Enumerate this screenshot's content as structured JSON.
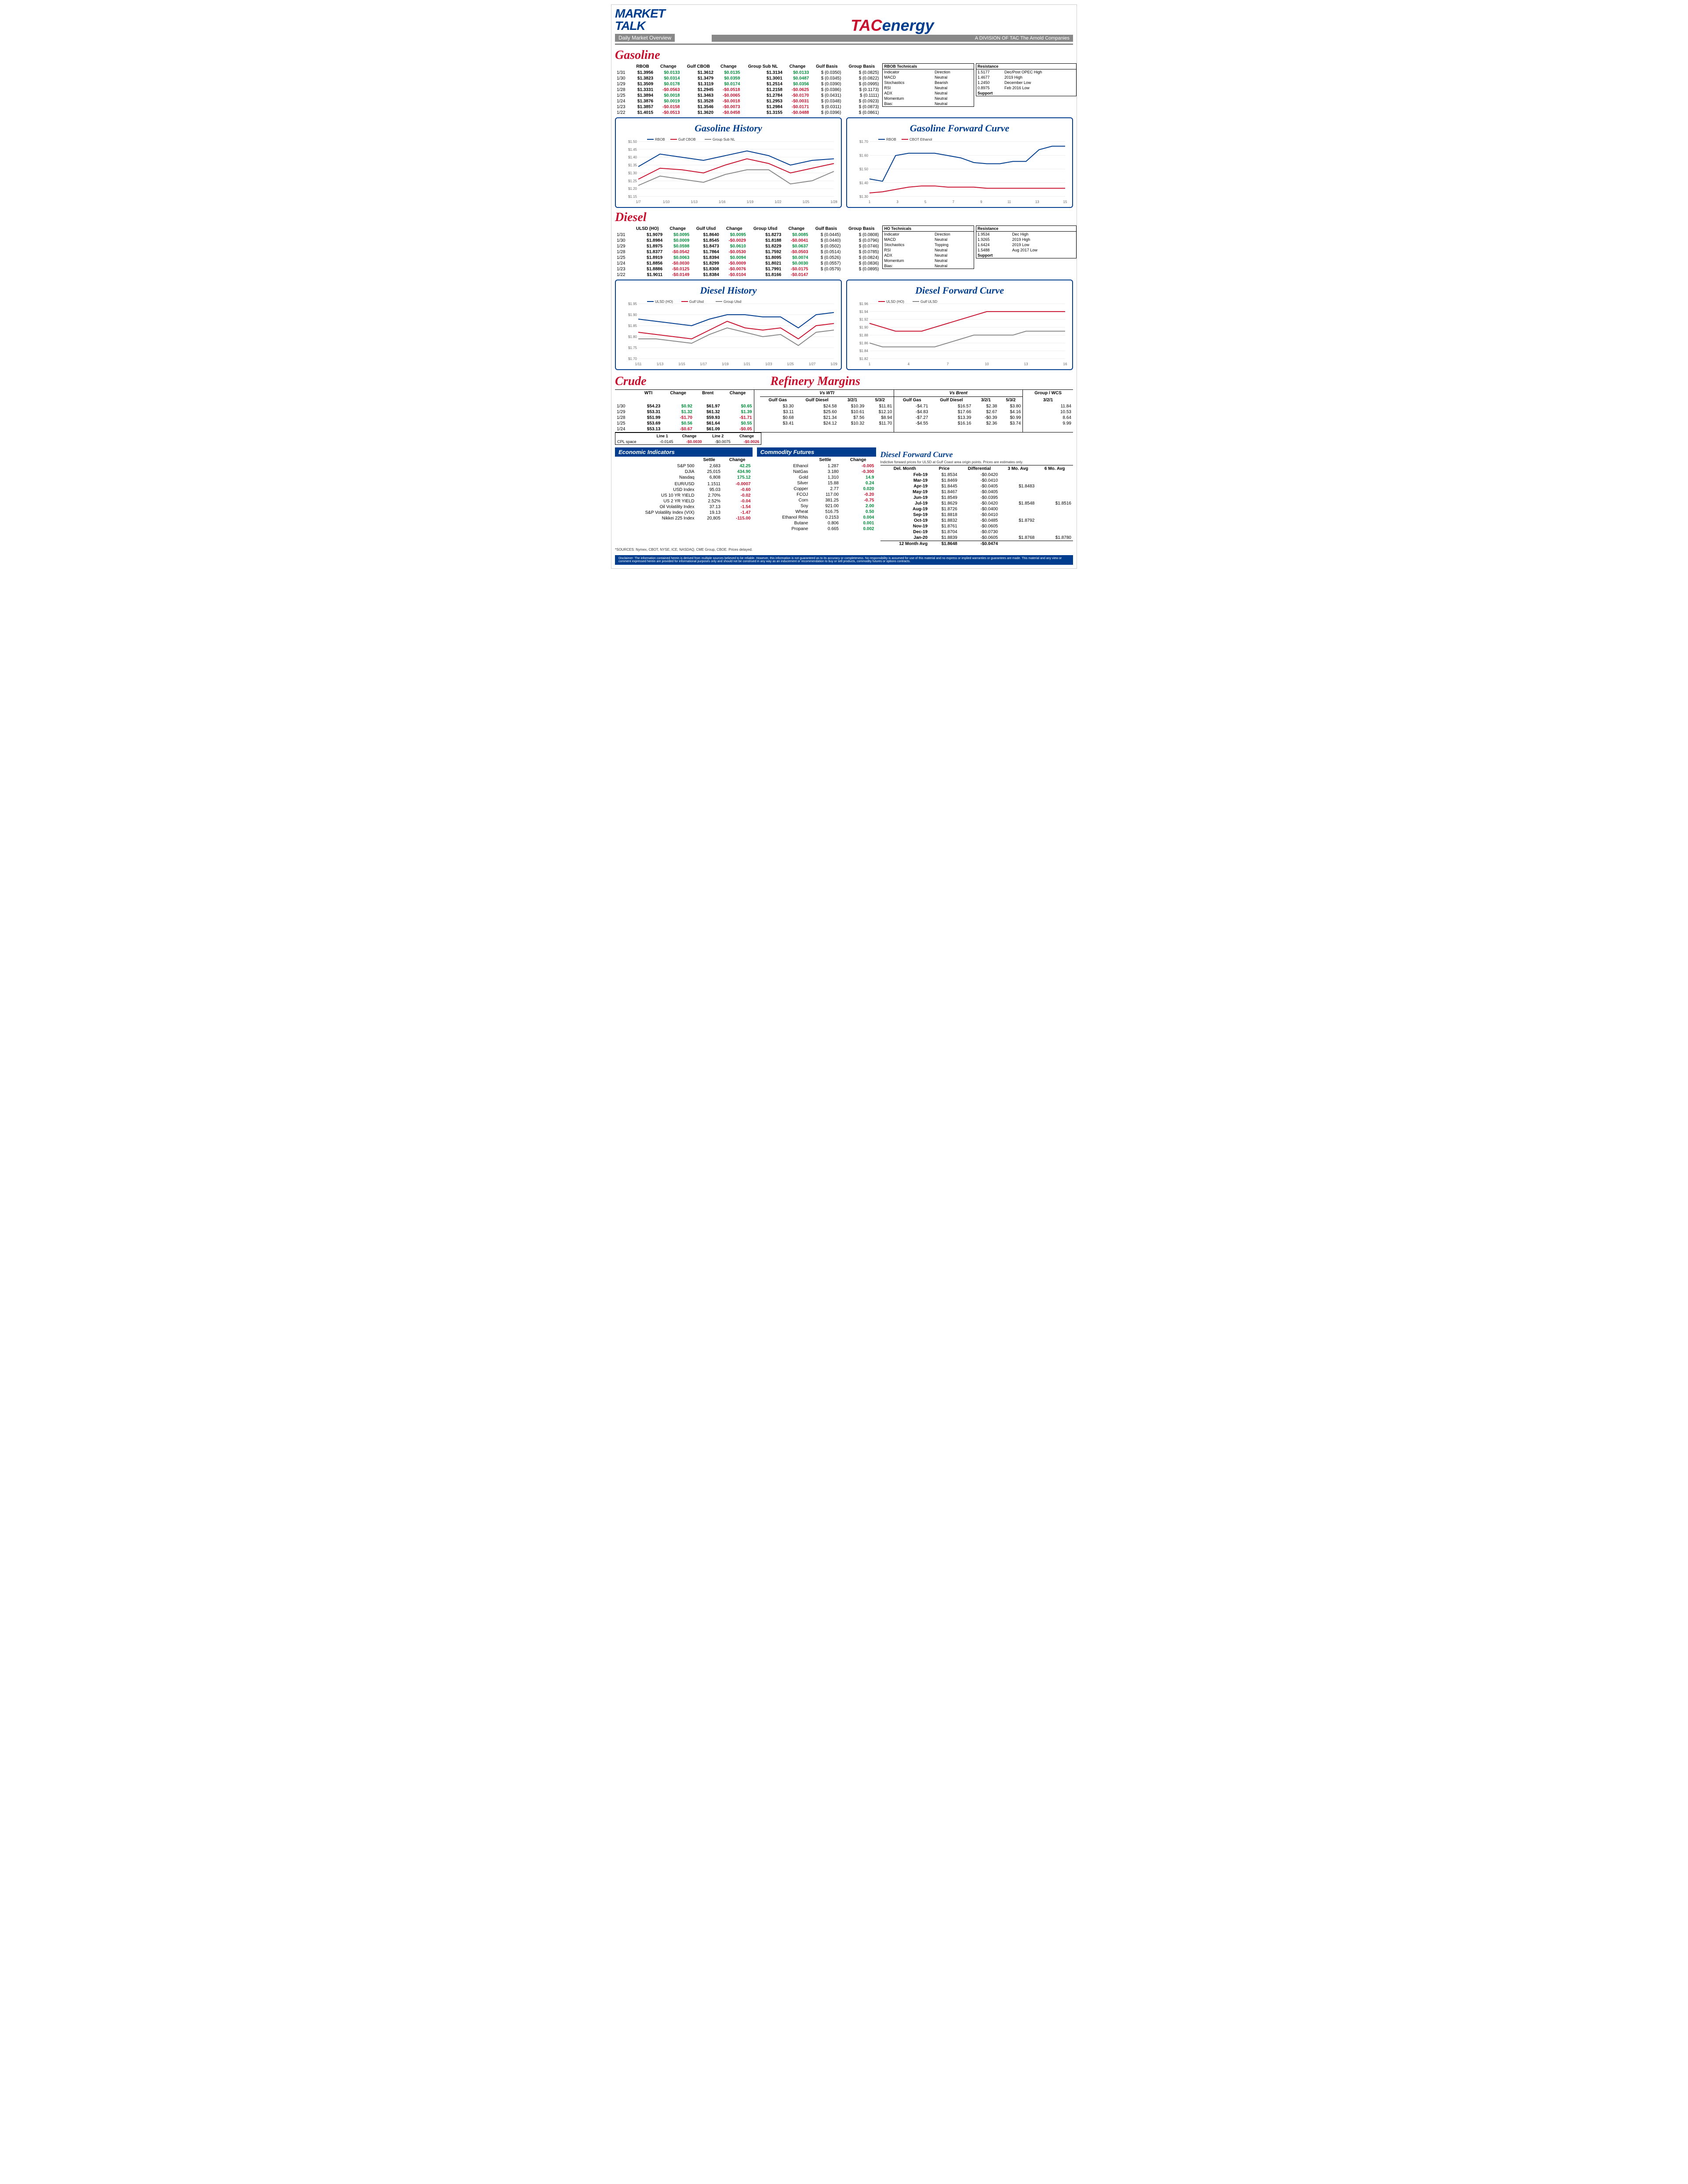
{
  "header": {
    "market": "MARKET",
    "talk": "TALK",
    "subtitle": "Daily Market Overview",
    "tac": "TAC",
    "energy": "energy",
    "division": "A DIVISION OF TAC The Arnold Companies"
  },
  "gasoline": {
    "title": "Gasoline",
    "headers": [
      "",
      "RBOB",
      "Change",
      "Gulf CBOB",
      "Change",
      "Group Sub NL",
      "Change",
      "Gulf Basis",
      "Group Basis"
    ],
    "rows": [
      [
        "1/31",
        "$1.3956",
        "$0.0133",
        "$1.3612",
        "$0.0135",
        "$1.3134",
        "$0.0133",
        "$ (0.0350)",
        "$    (0.0825)"
      ],
      [
        "1/30",
        "$1.3823",
        "$0.0314",
        "$1.3479",
        "$0.0359",
        "$1.3001",
        "$0.0487",
        "$ (0.0345)",
        "$    (0.0822)"
      ],
      [
        "1/29",
        "$1.3509",
        "$0.0178",
        "$1.3119",
        "$0.0174",
        "$1.2514",
        "$0.0356",
        "$ (0.0390)",
        "$    (0.0995)"
      ],
      [
        "1/28",
        "$1.3331",
        "-$0.0563",
        "$1.2945",
        "-$0.0518",
        "$1.2158",
        "-$0.0625",
        "$ (0.0386)",
        "$    (0.1173)"
      ],
      [
        "1/25",
        "$1.3894",
        "$0.0018",
        "$1.3463",
        "-$0.0065",
        "$1.2784",
        "-$0.0170",
        "$ (0.0431)",
        "$    (0.1111)"
      ],
      [
        "1/24",
        "$1.3876",
        "$0.0019",
        "$1.3528",
        "-$0.0018",
        "$1.2953",
        "-$0.0031",
        "$ (0.0348)",
        "$    (0.0923)"
      ],
      [
        "1/23",
        "$1.3857",
        "-$0.0158",
        "$1.3546",
        "-$0.0073",
        "$1.2984",
        "-$0.0171",
        "$ (0.0311)",
        "$    (0.0873)"
      ],
      [
        "1/22",
        "$1.4015",
        "-$0.0513",
        "$1.3620",
        "-$0.0458",
        "$1.3155",
        "-$0.0488",
        "$ (0.0396)",
        "$    (0.0861)"
      ]
    ],
    "changes_sign": [
      [
        1,
        1,
        1
      ],
      [
        1,
        1,
        1
      ],
      [
        1,
        1,
        1
      ],
      [
        -1,
        -1,
        -1
      ],
      [
        1,
        -1,
        -1
      ],
      [
        1,
        -1,
        -1
      ],
      [
        -1,
        -1,
        -1
      ],
      [
        -1,
        -1,
        -1
      ]
    ],
    "tech": {
      "title": "RBOB Technicals",
      "rows": [
        [
          "Indicator",
          "Direction"
        ],
        [
          "MACD",
          "Neutral"
        ],
        [
          "Stochastics",
          "Bearish"
        ],
        [
          "RSI",
          "Neutral"
        ],
        [
          "ADX",
          "Neutral"
        ],
        [
          "Momentum",
          "Neutral"
        ],
        [
          "Bias:",
          "Neutral"
        ]
      ]
    },
    "resist": {
      "title": "Resistance",
      "rows": [
        [
          "1.5177",
          "Dec/Post OPEC High"
        ],
        [
          "1.4677",
          "2019 High"
        ],
        [
          "1.2450",
          "December Low"
        ],
        [
          "0.8975",
          "Feb 2016 Low"
        ]
      ],
      "support": "Support"
    },
    "history": {
      "title": "Gasoline History",
      "x_labels": [
        "1/7",
        "1/10",
        "1/13",
        "1/16",
        "1/19",
        "1/22",
        "1/25",
        "1/28"
      ],
      "y_labels": [
        "$1.15",
        "$1.20",
        "$1.25",
        "$1.30",
        "$1.35",
        "$1.40",
        "$1.45",
        "$1.50"
      ],
      "series": [
        {
          "name": "RBOB",
          "color": "#003d8f",
          "values": [
            1.34,
            1.42,
            1.4,
            1.38,
            1.41,
            1.44,
            1.41,
            1.35,
            1.38,
            1.39
          ]
        },
        {
          "name": "Gulf CBOB",
          "color": "#c8102e",
          "values": [
            1.26,
            1.33,
            1.32,
            1.3,
            1.35,
            1.39,
            1.36,
            1.3,
            1.33,
            1.36
          ]
        },
        {
          "name": "Group Sub NL",
          "color": "#888",
          "values": [
            1.22,
            1.28,
            1.26,
            1.24,
            1.29,
            1.32,
            1.32,
            1.23,
            1.25,
            1.31
          ]
        }
      ],
      "ymin": 1.15,
      "ymax": 1.5
    },
    "forward": {
      "title": "Gasoline Forward Curve",
      "x_labels": [
        "1",
        "3",
        "5",
        "7",
        "9",
        "11",
        "13",
        "15"
      ],
      "y_labels": [
        "$1.30",
        "$1.40",
        "$1.50",
        "$1.60",
        "$1.70"
      ],
      "series": [
        {
          "name": "RBOB",
          "color": "#003d8f",
          "values": [
            1.4,
            1.38,
            1.6,
            1.62,
            1.62,
            1.62,
            1.6,
            1.58,
            1.54,
            1.53,
            1.53,
            1.55,
            1.55,
            1.65,
            1.68,
            1.68
          ]
        },
        {
          "name": "CBOT Ethanol",
          "color": "#c8102e",
          "values": [
            1.28,
            1.29,
            1.31,
            1.33,
            1.34,
            1.34,
            1.33,
            1.33,
            1.33,
            1.32,
            1.32,
            1.32,
            1.32,
            1.32,
            1.32,
            1.32
          ]
        }
      ],
      "ymin": 1.25,
      "ymax": 1.72
    }
  },
  "diesel": {
    "title": "Diesel",
    "headers": [
      "",
      "ULSD (HO)",
      "Change",
      "Gulf Ulsd",
      "Change",
      "Group Ulsd",
      "Change",
      "Gulf Basis",
      "Group Basis"
    ],
    "rows": [
      [
        "1/31",
        "$1.9079",
        "$0.0095",
        "$1.8640",
        "$0.0095",
        "$1.8273",
        "$0.0085",
        "$ (0.0445)",
        "$    (0.0808)"
      ],
      [
        "1/30",
        "$1.8984",
        "$0.0009",
        "$1.8545",
        "-$0.0029",
        "$1.8188",
        "-$0.0041",
        "$ (0.0440)",
        "$    (0.0796)"
      ],
      [
        "1/29",
        "$1.8975",
        "$0.0598",
        "$1.8473",
        "$0.0610",
        "$1.8229",
        "$0.0637",
        "$ (0.0502)",
        "$    (0.0746)"
      ],
      [
        "1/28",
        "$1.8377",
        "-$0.0542",
        "$1.7864",
        "-$0.0530",
        "$1.7592",
        "-$0.0503",
        "$ (0.0514)",
        "$    (0.0785)"
      ],
      [
        "1/25",
        "$1.8919",
        "$0.0063",
        "$1.8394",
        "$0.0094",
        "$1.8095",
        "$0.0074",
        "$ (0.0526)",
        "$    (0.0824)"
      ],
      [
        "1/24",
        "$1.8856",
        "-$0.0030",
        "$1.8299",
        "-$0.0009",
        "$1.8021",
        "$0.0030",
        "$ (0.0557)",
        "$    (0.0836)"
      ],
      [
        "1/23",
        "$1.8886",
        "-$0.0125",
        "$1.8308",
        "-$0.0076",
        "$1.7991",
        "-$0.0175",
        "$ (0.0579)",
        "$    (0.0895)"
      ],
      [
        "1/22",
        "$1.9011",
        "-$0.0149",
        "$1.8384",
        "-$0.0104",
        "$1.8166",
        "-$0.0147",
        "",
        ""
      ]
    ],
    "changes_sign": [
      [
        1,
        1,
        1
      ],
      [
        1,
        -1,
        -1
      ],
      [
        1,
        1,
        1
      ],
      [
        -1,
        -1,
        -1
      ],
      [
        1,
        1,
        1
      ],
      [
        -1,
        -1,
        1
      ],
      [
        -1,
        -1,
        -1
      ],
      [
        -1,
        -1,
        -1
      ]
    ],
    "tech": {
      "title": "HO Technicals",
      "rows": [
        [
          "Indicator",
          "Direction"
        ],
        [
          "MACD",
          "Neutral"
        ],
        [
          "Stochastics",
          "Topping"
        ],
        [
          "RSI",
          "Neutral"
        ],
        [
          "ADX",
          "Neutral"
        ],
        [
          "Momentum",
          "Neutral"
        ],
        [
          "Bias:",
          "Neutral"
        ]
      ]
    },
    "resist": {
      "title": "Resistance",
      "rows": [
        [
          "1.9534",
          "Dec High"
        ],
        [
          "1.9265",
          "2019 High"
        ],
        [
          "1.6424",
          "2019 Low"
        ],
        [
          "1.5488",
          "Aug 2017 Low"
        ]
      ],
      "support": "Support"
    },
    "history": {
      "title": "Diesel History",
      "x_labels": [
        "1/11",
        "1/13",
        "1/15",
        "1/17",
        "1/19",
        "1/21",
        "1/23",
        "1/25",
        "1/27",
        "1/29"
      ],
      "y_labels": [
        "$1.70",
        "$1.75",
        "$1.80",
        "$1.85",
        "$1.90",
        "$1.95"
      ],
      "series": [
        {
          "name": "ULSD (HO)",
          "color": "#003d8f",
          "values": [
            1.88,
            1.87,
            1.86,
            1.85,
            1.88,
            1.9,
            1.9,
            1.89,
            1.89,
            1.84,
            1.9,
            1.91
          ]
        },
        {
          "name": "Gulf Ulsd",
          "color": "#c8102e",
          "values": [
            1.82,
            1.81,
            1.8,
            1.79,
            1.83,
            1.87,
            1.84,
            1.83,
            1.84,
            1.79,
            1.85,
            1.86
          ]
        },
        {
          "name": "Group Ulsd",
          "color": "#888",
          "values": [
            1.79,
            1.79,
            1.78,
            1.77,
            1.81,
            1.84,
            1.82,
            1.8,
            1.81,
            1.76,
            1.82,
            1.83
          ]
        }
      ],
      "ymin": 1.7,
      "ymax": 1.95
    },
    "forward": {
      "title": "Diesel Forward Curve",
      "x_labels": [
        "1",
        "4",
        "7",
        "10",
        "13",
        "16"
      ],
      "y_labels": [
        "$1.82",
        "$1.84",
        "$1.86",
        "$1.88",
        "$1.90",
        "$1.92",
        "$1.94",
        "$1.96"
      ],
      "series": [
        {
          "name": "ULSD (HO)",
          "color": "#c8102e",
          "values": [
            1.91,
            1.9,
            1.89,
            1.89,
            1.89,
            1.9,
            1.91,
            1.92,
            1.93,
            1.94,
            1.94,
            1.94,
            1.94,
            1.94,
            1.94,
            1.94
          ]
        },
        {
          "name": "Gulf ULSD",
          "color": "#888",
          "values": [
            1.86,
            1.85,
            1.85,
            1.85,
            1.85,
            1.85,
            1.86,
            1.87,
            1.88,
            1.88,
            1.88,
            1.88,
            1.89,
            1.89,
            1.89,
            1.89
          ]
        }
      ],
      "ymin": 1.82,
      "ymax": 1.96
    }
  },
  "crude": {
    "title": "Crude",
    "headers": [
      "",
      "WTI",
      "Change",
      "Brent",
      "Change"
    ],
    "rows": [
      [
        "1/30",
        "$54.23",
        "$0.92",
        "$61.97",
        "$0.65"
      ],
      [
        "1/29",
        "$53.31",
        "$1.32",
        "$61.32",
        "$1.39"
      ],
      [
        "1/28",
        "$51.99",
        "-$1.70",
        "$59.93",
        "-$1.71"
      ],
      [
        "1/25",
        "$53.69",
        "$0.56",
        "$61.64",
        "$0.55"
      ],
      [
        "1/24",
        "$53.13",
        "-$0.67",
        "$61.09",
        "-$0.05"
      ]
    ],
    "changes_sign": [
      [
        1,
        1
      ],
      [
        1,
        1
      ],
      [
        -1,
        -1
      ],
      [
        1,
        1
      ],
      [
        -1,
        -1
      ]
    ],
    "cpl": {
      "label": "CPL space",
      "l1": "Line 1",
      "l1c": "Change",
      "l2": "Line 2",
      "l2c": "Change",
      "v": [
        "-0.0145",
        "-$0.0030",
        "-$0.0075",
        "-$0.0026"
      ]
    }
  },
  "refinery": {
    "title": "Refinery Margins",
    "h1": [
      "",
      "Vs WTI",
      "",
      "",
      "",
      "Vs Brent",
      "",
      "",
      "Group / WCS"
    ],
    "h2": [
      "Gulf Gas",
      "Gulf Diesel",
      "3/2/1",
      "5/3/2",
      "Gulf Gas",
      "Gulf Diesel",
      "3/2/1",
      "5/3/2",
      "3/2/1"
    ],
    "rows": [
      [
        "$3.30",
        "$24.58",
        "$10.39",
        "$11.81",
        "-$4.71",
        "$16.57",
        "$2.38",
        "$3.80",
        "11.84"
      ],
      [
        "$3.11",
        "$25.60",
        "$10.61",
        "$12.10",
        "-$4.83",
        "$17.66",
        "$2.67",
        "$4.16",
        "10.53"
      ],
      [
        "$0.68",
        "$21.34",
        "$7.56",
        "$8.94",
        "-$7.27",
        "$13.39",
        "-$0.39",
        "$0.99",
        "8.64"
      ],
      [
        "$3.41",
        "$24.12",
        "$10.32",
        "$11.70",
        "-$4.55",
        "$16.16",
        "$2.36",
        "$3.74",
        "9.99"
      ]
    ]
  },
  "econ": {
    "title": "Economic Indicators",
    "headers": [
      "",
      "Settle",
      "Change"
    ],
    "rows": [
      [
        "S&P 500",
        "2,683",
        "42.25",
        1
      ],
      [
        "DJIA",
        "25,015",
        "434.90",
        1
      ],
      [
        "Nasdaq",
        "6,808",
        "175.12",
        1
      ],
      [
        "",
        "",
        "",
        0
      ],
      [
        "EUR/USD",
        "1.1511",
        "-0.0007",
        -1
      ],
      [
        "USD Index",
        "95.03",
        "-0.60",
        -1
      ],
      [
        "US 10 YR YIELD",
        "2.70%",
        "-0.02",
        -1
      ],
      [
        "US 2 YR YIELD",
        "2.52%",
        "-0.04",
        -1
      ],
      [
        "Oil Volatility Index",
        "37.13",
        "-1.54",
        -1
      ],
      [
        "S&P Volatility Index (VIX)",
        "19.13",
        "-1.47",
        -1
      ],
      [
        "Nikkei 225 Index",
        "20,805",
        "-115.00",
        -1
      ]
    ]
  },
  "commod": {
    "title": "Commodity Futures",
    "headers": [
      "",
      "Settle",
      "Change"
    ],
    "rows": [
      [
        "Ethanol",
        "1.287",
        "-0.005",
        -1
      ],
      [
        "NatGas",
        "3.180",
        "-0.300",
        -1
      ],
      [
        "Gold",
        "1,310",
        "14.9",
        1
      ],
      [
        "Silver",
        "15.88",
        "0.24",
        1
      ],
      [
        "Copper",
        "2.77",
        "0.020",
        1
      ],
      [
        "FCOJ",
        "117.00",
        "-0.20",
        -1
      ],
      [
        "Corn",
        "381.25",
        "-0.75",
        -1
      ],
      [
        "Soy",
        "921.00",
        "2.00",
        1
      ],
      [
        "Wheat",
        "516.75",
        "0.50",
        1
      ],
      [
        "Ethanol RINs",
        "0.2153",
        "0.004",
        1
      ],
      [
        "Butane",
        "0.806",
        "0.001",
        1
      ],
      [
        "Propane",
        "0.665",
        "0.002",
        1
      ]
    ]
  },
  "dfc": {
    "title": "Diesel Forward Curve",
    "note": "Indictive forward prices for ULSD at Gulf Coast area origin points.  Prices are estimates only.",
    "headers": [
      "Del. Month",
      "Price",
      "Differential",
      "3 Mo. Avg",
      "6 Mo. Avg"
    ],
    "rows": [
      [
        "Feb-19",
        "$1.8534",
        "-$0.0420",
        "",
        ""
      ],
      [
        "Mar-19",
        "$1.8469",
        "-$0.0410",
        "",
        ""
      ],
      [
        "Apr-19",
        "$1.8445",
        "-$0.0405",
        "$1.8483",
        ""
      ],
      [
        "May-19",
        "$1.8467",
        "-$0.0405",
        "",
        ""
      ],
      [
        "Jun-19",
        "$1.8549",
        "-$0.0395",
        "",
        ""
      ],
      [
        "Jul-19",
        "$1.8629",
        "-$0.0420",
        "$1.8548",
        "$1.8516"
      ],
      [
        "Aug-19",
        "$1.8726",
        "-$0.0400",
        "",
        ""
      ],
      [
        "Sep-19",
        "$1.8818",
        "-$0.0410",
        "",
        ""
      ],
      [
        "Oct-19",
        "$1.8832",
        "-$0.0485",
        "$1.8792",
        ""
      ],
      [
        "Nov-19",
        "$1.8761",
        "-$0.0605",
        "",
        ""
      ],
      [
        "Dec-19",
        "$1.8704",
        "-$0.0730",
        "",
        ""
      ],
      [
        "Jan-20",
        "$1.8839",
        "-$0.0605",
        "$1.8768",
        "$1.8780"
      ]
    ],
    "avg": [
      "12 Month Avg",
      "$1.8648",
      "-$0.0474",
      "",
      ""
    ]
  },
  "sources": "*SOURCES: Nymex, CBOT, NYSE, ICE, NASDAQ, CME Group, CBOE.   Prices delayed.",
  "disclaimer": "Disclaimer: The information contained herein is derived from multiple sources believed to be reliable. However, this information is not guaranteed as to its accuracy or completeness. No responsibility is assumed for use of this material and no express or implied warranties or guarantees are made. This material and any view or comment expressed herein are provided for informational purposes only and should not be construed in any way as an inducement or recommendation to buy or sell products, commodity futures or options contracts."
}
